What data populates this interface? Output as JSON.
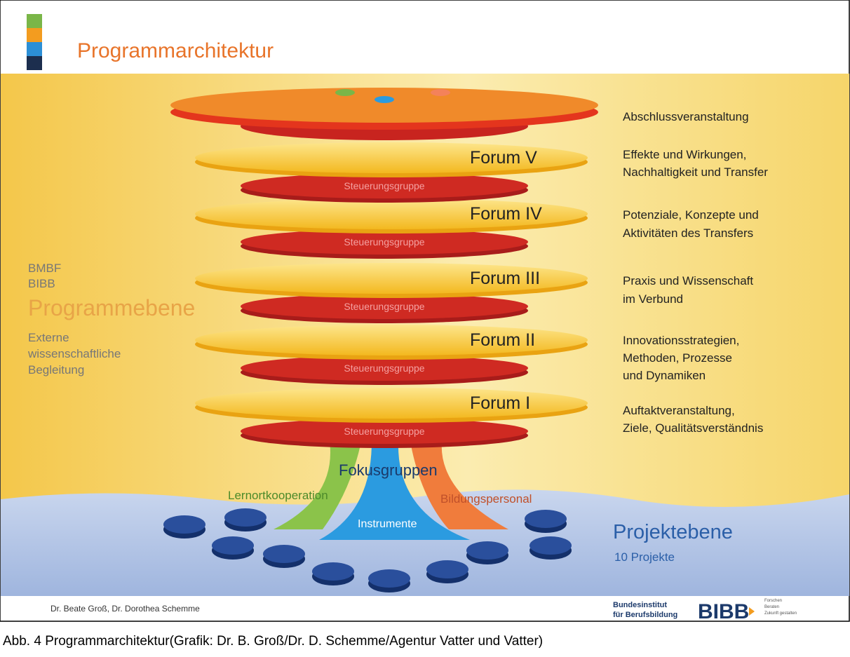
{
  "header": {
    "title": "Programmarchitektur"
  },
  "top_level": {
    "label": "Abschlussveranstaltung"
  },
  "forums": [
    {
      "label": "Forum V",
      "steering": "Steuerungsgruppe",
      "description": [
        "Effekte und Wirkungen,",
        "Nachhaltigkeit und Transfer"
      ]
    },
    {
      "label": "Forum IV",
      "steering": "Steuerungsgruppe",
      "description": [
        "Potenziale, Konzepte und",
        "Aktivitäten des Transfers"
      ]
    },
    {
      "label": "Forum III",
      "steering": "Steuerungsgruppe",
      "description": [
        "Praxis und Wissenschaft",
        "im Verbund"
      ]
    },
    {
      "label": "Forum II",
      "steering": "Steuerungsgruppe",
      "description": [
        "Innovationsstrategien,",
        "Methoden, Prozesse",
        "und Dynamiken"
      ]
    },
    {
      "label": "Forum I",
      "steering": "Steuerungsgruppe",
      "description": [
        "Auftaktveranstaltung,",
        "Ziele, Qualitätsverständnis"
      ]
    }
  ],
  "program_level": {
    "actors": [
      "BMBF",
      "BIBB"
    ],
    "label": "Programmebene",
    "support": [
      "Externe",
      "wissenschaftliche",
      "Begleitung"
    ]
  },
  "focus_groups": {
    "label": "Fokusgruppen",
    "groups": [
      "Lernortkooperation",
      "Instrumente",
      "Bildungspersonal"
    ]
  },
  "project_level": {
    "label": "Projektebene",
    "count": "10 Projekte"
  },
  "footer": {
    "authors": "Dr. Beate Groß, Dr. Dorothea Schemme",
    "institute": [
      "Bundesinstitut",
      "für Berufsbildung"
    ],
    "logo": "BIBB",
    "motto": [
      "Forschen",
      "Beraten",
      "Zukunft gestalten"
    ]
  },
  "caption": "Abb. 4 Programmarchitektur(Grafik: Dr. B. Groß/Dr. D. Schemme/Agentur Vatter und Vatter)"
}
